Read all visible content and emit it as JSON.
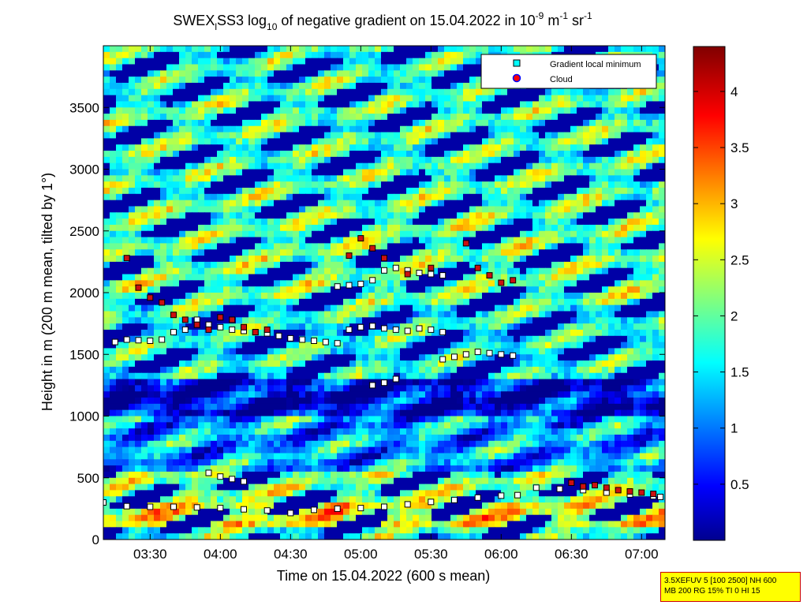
{
  "chart_data": {
    "type": "heatmap",
    "title": {
      "part1": "SWEX",
      "sub1": "l",
      "part2": "SS3 log",
      "sub2": "10",
      "part3": " of negative gradient on 15.04.2022 in 10",
      "sup1": "-9",
      "part4": " m",
      "sup2": "-1",
      "part5": " sr",
      "sup3": "-1"
    },
    "xlabel": "Time on 15.04.2022 (600 s mean)",
    "ylabel": "Height in m (200 m mean, tilted by 1°)",
    "xlim": [
      "03:10",
      "07:10"
    ],
    "ylim": [
      0,
      4000
    ],
    "x_ticks": [
      "03:30",
      "04:00",
      "04:30",
      "05:00",
      "05:30",
      "06:00",
      "06:30",
      "07:00"
    ],
    "y_ticks": [
      0,
      500,
      1000,
      1500,
      2000,
      2500,
      3000,
      3500
    ],
    "colorbar": {
      "ticks": [
        "0.5",
        "1",
        "1.5",
        "2",
        "2.5",
        "3",
        "3.5",
        "4"
      ],
      "clim": [
        0,
        4.4
      ],
      "colormap": "jet"
    },
    "legend": {
      "placement": "top-right",
      "entries": [
        {
          "label": "Gradient local minimum",
          "marker": "square",
          "color": "#00ffff"
        },
        {
          "label": "Cloud",
          "marker": "circle",
          "color": "#ff0000"
        }
      ]
    },
    "series": [
      {
        "name": "Gradient local minimum",
        "layers": [
          {
            "t": [
              "03:10",
              "03:20",
              "03:30",
              "03:40",
              "03:50",
              "04:00",
              "04:10",
              "04:20",
              "04:30",
              "04:40",
              "04:50",
              "05:00",
              "05:10",
              "05:20",
              "05:30",
              "05:40",
              "05:50",
              "06:00",
              "06:07",
              "06:15",
              "06:25",
              "06:35",
              "06:45",
              "06:55",
              "07:05",
              "07:08"
            ],
            "h": [
              300,
              270,
              265,
              265,
              260,
              255,
              245,
              235,
              215,
              240,
              250,
              255,
              265,
              285,
              305,
              320,
              340,
              355,
              360,
              420,
              410,
              400,
              380,
              365,
              350,
              345
            ]
          },
          {
            "t": [
              "03:55",
              "04:00",
              "04:05",
              "04:10"
            ],
            "h": [
              540,
              510,
              490,
              470
            ]
          },
          {
            "t": [
              "03:15",
              "03:20",
              "03:25",
              "03:30",
              "03:35",
              "03:40",
              "03:45",
              "03:50",
              "03:55",
              "04:00",
              "04:05",
              "04:10",
              "04:15",
              "04:20",
              "04:25",
              "04:30",
              "04:35",
              "04:40",
              "04:45",
              "04:50"
            ],
            "h": [
              1600,
              1620,
              1615,
              1610,
              1620,
              1680,
              1700,
              1780,
              1740,
              1720,
              1700,
              1690,
              1680,
              1670,
              1650,
              1630,
              1620,
              1610,
              1600,
              1590
            ]
          },
          {
            "t": [
              "04:55",
              "05:00",
              "05:05",
              "05:10",
              "05:15",
              "05:20"
            ],
            "h": [
              1700,
              1720,
              1730,
              1710,
              1700,
              1690
            ]
          },
          {
            "t": [
              "05:05",
              "05:10",
              "05:15"
            ],
            "h": [
              1250,
              1270,
              1300
            ]
          },
          {
            "t": [
              "05:25",
              "05:30",
              "05:35"
            ],
            "h": [
              1710,
              1700,
              1680
            ]
          },
          {
            "t": [
              "05:35",
              "05:40",
              "05:45",
              "05:50",
              "05:55",
              "06:00",
              "06:05"
            ],
            "h": [
              1460,
              1480,
              1500,
              1520,
              1510,
              1500,
              1490
            ]
          },
          {
            "t": [
              "05:05",
              "05:10",
              "05:15",
              "05:20",
              "05:25",
              "05:30",
              "05:35"
            ],
            "h": [
              2100,
              2180,
              2200,
              2180,
              2160,
              2150,
              2140
            ]
          },
          {
            "t": [
              "04:50",
              "04:55",
              "05:00"
            ],
            "h": [
              2050,
              2060,
              2070
            ]
          }
        ]
      },
      {
        "name": "Cloud",
        "layers": [
          {
            "t": [
              "03:20",
              "03:25",
              "03:30",
              "03:35",
              "03:40",
              "03:45",
              "03:50",
              "03:55",
              "04:00",
              "04:05",
              "04:10",
              "04:15",
              "04:20"
            ],
            "h": [
              2280,
              2040,
              1960,
              1920,
              1820,
              1780,
              1740,
              1700,
              1800,
              1780,
              1720,
              1680,
              1700
            ]
          },
          {
            "t": [
              "04:55",
              "05:00",
              "05:05",
              "05:10",
              "05:20",
              "05:30",
              "05:45",
              "05:50",
              "05:55",
              "06:00",
              "06:05"
            ],
            "h": [
              2300,
              2440,
              2360,
              2280,
              2150,
              2200,
              2400,
              2200,
              2140,
              2080,
              2100
            ]
          },
          {
            "t": [
              "06:30",
              "06:35",
              "06:40",
              "06:45",
              "06:50",
              "06:55",
              "07:00",
              "07:05"
            ],
            "h": [
              460,
              430,
              440,
              420,
              400,
              390,
              380,
              370
            ]
          }
        ]
      }
    ],
    "field_levels": {
      "description_keys": "rows by height band; colormap values 0-4.4",
      "bands": [
        {
          "h_from": 0,
          "h_to": 120,
          "v": 1.6
        },
        {
          "h_from": 120,
          "h_to": 320,
          "v": 2.4
        },
        {
          "h_from": 320,
          "h_to": 560,
          "v": 1.9
        },
        {
          "h_from": 560,
          "h_to": 1000,
          "v": 1.2
        },
        {
          "h_from": 1000,
          "h_to": 1300,
          "v": 0.3
        },
        {
          "h_from": 1300,
          "h_to": 1900,
          "v": 1.5
        },
        {
          "h_from": 1900,
          "h_to": 2700,
          "v": 1.8
        },
        {
          "h_from": 2700,
          "h_to": 3600,
          "v": 1.7
        },
        {
          "h_from": 3600,
          "h_to": 4000,
          "v": 1.6
        }
      ]
    }
  },
  "info_box": {
    "line1": "3.5XEFUV 5 [100 2500] NH 600",
    "line2": "MB 200 RG 15% TI 0 HI 15"
  },
  "colors": {
    "background_dark_blue": "#000080",
    "gradient_marker_fill": "#00ffff",
    "cloud_marker_fill": "#ff0000",
    "info_box_background": "#ffff00",
    "info_box_border": "#cc0000"
  }
}
